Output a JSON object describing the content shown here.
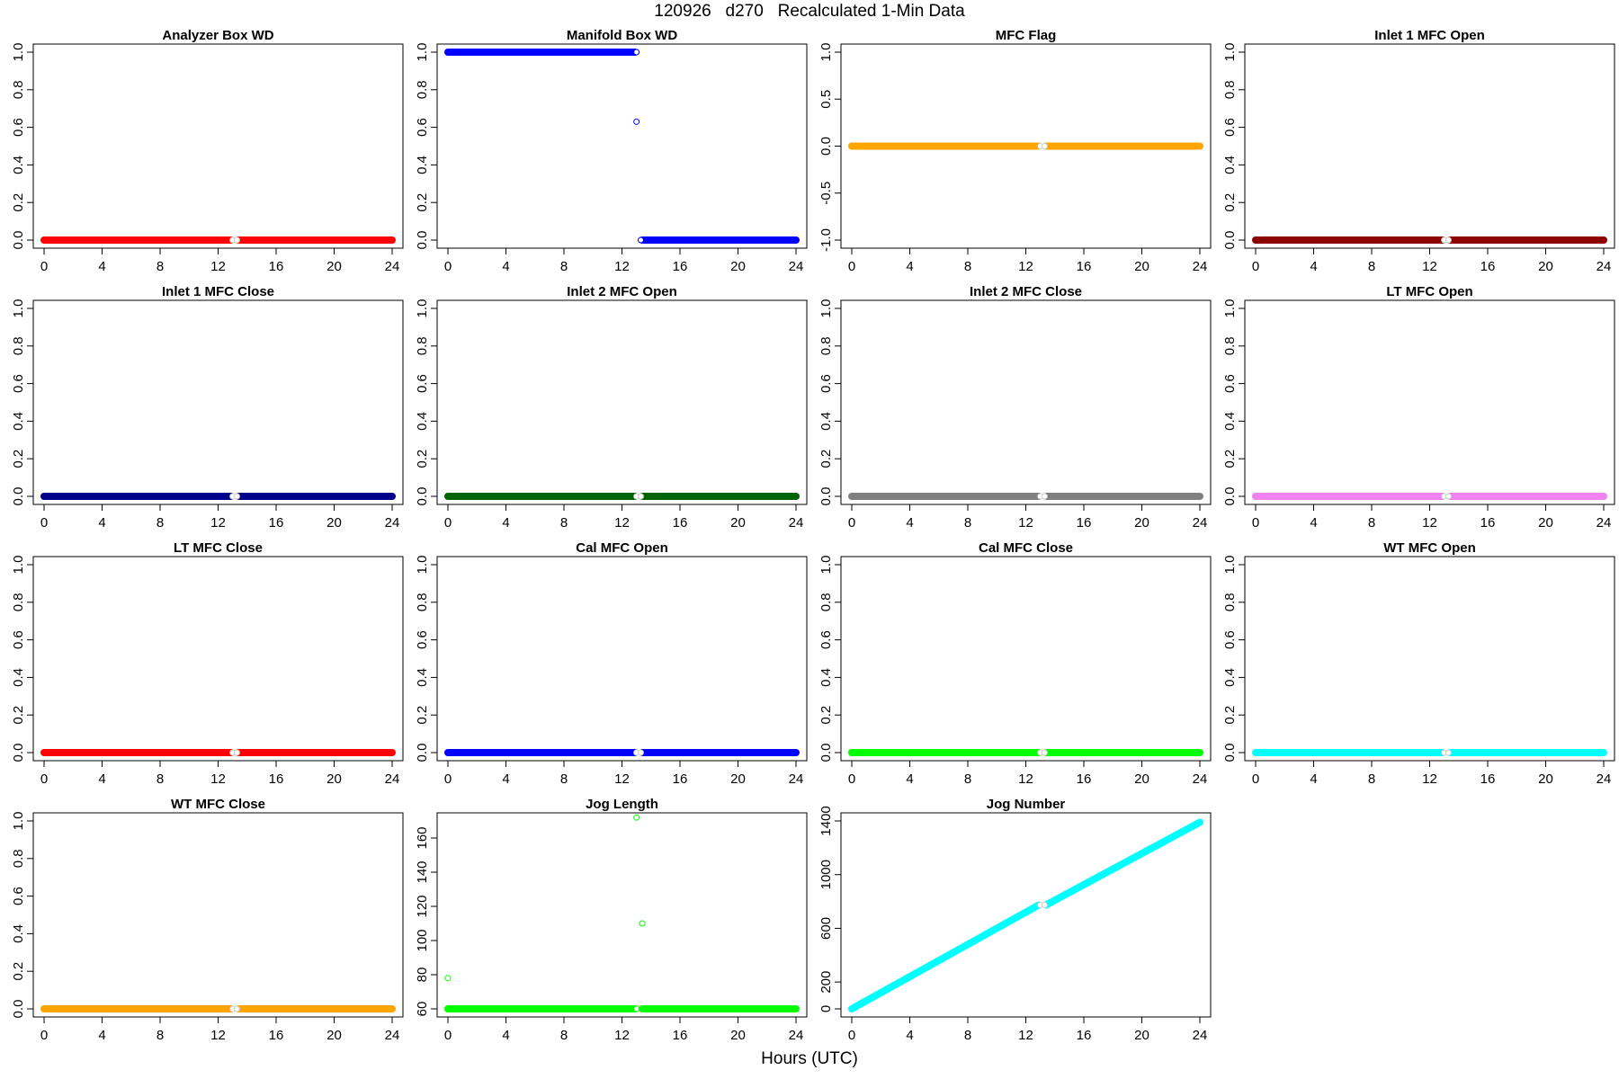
{
  "page": {
    "title": "120926   d270   Recalculated 1-Min Data",
    "xlabel": "Hours (UTC)"
  },
  "chart_data": [
    {
      "type": "scatter",
      "title": "Analyzer Box WD",
      "color": "#FF0000",
      "xlim": [
        0,
        24
      ],
      "ylim": [
        0,
        1
      ],
      "xticks": [
        0,
        4,
        8,
        12,
        16,
        20,
        24
      ],
      "yticks": [
        0.0,
        0.2,
        0.4,
        0.6,
        0.8,
        1.0
      ],
      "ytick_labels": [
        "0.0",
        "0.2",
        "0.4",
        "0.6",
        "0.8",
        "1.0"
      ],
      "series": [
        {
          "segments": [
            {
              "x_from": 0,
              "x_to": 12.9,
              "y": 0
            },
            {
              "x_from": 13.4,
              "x_to": 24,
              "y": 0
            }
          ]
        }
      ],
      "gap_points": [
        {
          "x": 13.0,
          "y": 0
        },
        {
          "x": 13.3,
          "y": 0
        }
      ]
    },
    {
      "type": "scatter",
      "title": "Manifold Box WD",
      "color": "#0000FF",
      "xlim": [
        0,
        24
      ],
      "ylim": [
        0,
        1
      ],
      "xticks": [
        0,
        4,
        8,
        12,
        16,
        20,
        24
      ],
      "yticks": [
        0.0,
        0.2,
        0.4,
        0.6,
        0.8,
        1.0
      ],
      "ytick_labels": [
        "0.0",
        "0.2",
        "0.4",
        "0.6",
        "0.8",
        "1.0"
      ],
      "series": [
        {
          "segments": [
            {
              "x_from": 0,
              "x_to": 12.9,
              "y": 1
            },
            {
              "x_from": 13.4,
              "x_to": 24,
              "y": 0
            }
          ]
        }
      ],
      "points": [
        {
          "x": 13.0,
          "y": 1
        },
        {
          "x": 13.0,
          "y": 0.63
        },
        {
          "x": 13.3,
          "y": 0
        }
      ]
    },
    {
      "type": "scatter",
      "title": "MFC Flag",
      "color": "#FFA500",
      "xlim": [
        0,
        24
      ],
      "ylim": [
        -1,
        1
      ],
      "xticks": [
        0,
        4,
        8,
        12,
        16,
        20,
        24
      ],
      "yticks": [
        -1.0,
        -0.5,
        0.0,
        0.5,
        1.0
      ],
      "ytick_labels": [
        "-1.0",
        "-0.5",
        "0.0",
        "0.5",
        "1.0"
      ],
      "series": [
        {
          "segments": [
            {
              "x_from": 0,
              "x_to": 12.9,
              "y": 0
            },
            {
              "x_from": 13.4,
              "x_to": 24,
              "y": 0
            }
          ]
        }
      ],
      "gap_points": [
        {
          "x": 13.0,
          "y": 0
        },
        {
          "x": 13.3,
          "y": 0
        }
      ]
    },
    {
      "type": "scatter",
      "title": "Inlet 1 MFC Open",
      "color": "#8B0000",
      "xlim": [
        0,
        24
      ],
      "ylim": [
        0,
        1
      ],
      "xticks": [
        0,
        4,
        8,
        12,
        16,
        20,
        24
      ],
      "yticks": [
        0.0,
        0.2,
        0.4,
        0.6,
        0.8,
        1.0
      ],
      "ytick_labels": [
        "0.0",
        "0.2",
        "0.4",
        "0.6",
        "0.8",
        "1.0"
      ],
      "series": [
        {
          "segments": [
            {
              "x_from": 0,
              "x_to": 12.9,
              "y": 0
            },
            {
              "x_from": 13.4,
              "x_to": 24,
              "y": 0
            }
          ]
        }
      ],
      "gap_points": [
        {
          "x": 13.0,
          "y": 0
        },
        {
          "x": 13.3,
          "y": 0
        }
      ]
    },
    {
      "type": "scatter",
      "title": "Inlet 1 MFC Close",
      "color": "#00008B",
      "xlim": [
        0,
        24
      ],
      "ylim": [
        0,
        1
      ],
      "xticks": [
        0,
        4,
        8,
        12,
        16,
        20,
        24
      ],
      "yticks": [
        0.0,
        0.2,
        0.4,
        0.6,
        0.8,
        1.0
      ],
      "ytick_labels": [
        "0.0",
        "0.2",
        "0.4",
        "0.6",
        "0.8",
        "1.0"
      ],
      "series": [
        {
          "segments": [
            {
              "x_from": 0,
              "x_to": 12.9,
              "y": 0
            },
            {
              "x_from": 13.4,
              "x_to": 24,
              "y": 0
            }
          ]
        }
      ],
      "gap_points": [
        {
          "x": 13.0,
          "y": 0
        },
        {
          "x": 13.3,
          "y": 0
        }
      ]
    },
    {
      "type": "scatter",
      "title": "Inlet 2 MFC Open",
      "color": "#006400",
      "xlim": [
        0,
        24
      ],
      "ylim": [
        0,
        1
      ],
      "xticks": [
        0,
        4,
        8,
        12,
        16,
        20,
        24
      ],
      "yticks": [
        0.0,
        0.2,
        0.4,
        0.6,
        0.8,
        1.0
      ],
      "ytick_labels": [
        "0.0",
        "0.2",
        "0.4",
        "0.6",
        "0.8",
        "1.0"
      ],
      "series": [
        {
          "segments": [
            {
              "x_from": 0,
              "x_to": 12.9,
              "y": 0
            },
            {
              "x_from": 13.4,
              "x_to": 24,
              "y": 0
            }
          ]
        }
      ],
      "gap_points": [
        {
          "x": 13.0,
          "y": 0
        },
        {
          "x": 13.3,
          "y": 0
        }
      ]
    },
    {
      "type": "scatter",
      "title": "Inlet 2 MFC Close",
      "color": "#808080",
      "xlim": [
        0,
        24
      ],
      "ylim": [
        0,
        1
      ],
      "xticks": [
        0,
        4,
        8,
        12,
        16,
        20,
        24
      ],
      "yticks": [
        0.0,
        0.2,
        0.4,
        0.6,
        0.8,
        1.0
      ],
      "ytick_labels": [
        "0.0",
        "0.2",
        "0.4",
        "0.6",
        "0.8",
        "1.0"
      ],
      "series": [
        {
          "segments": [
            {
              "x_from": 0,
              "x_to": 12.9,
              "y": 0
            },
            {
              "x_from": 13.4,
              "x_to": 24,
              "y": 0
            }
          ]
        }
      ],
      "gap_points": [
        {
          "x": 13.0,
          "y": 0
        },
        {
          "x": 13.3,
          "y": 0
        }
      ]
    },
    {
      "type": "scatter",
      "title": "LT MFC Open",
      "color": "#EE82EE",
      "xlim": [
        0,
        24
      ],
      "ylim": [
        0,
        1
      ],
      "xticks": [
        0,
        4,
        8,
        12,
        16,
        20,
        24
      ],
      "yticks": [
        0.0,
        0.2,
        0.4,
        0.6,
        0.8,
        1.0
      ],
      "ytick_labels": [
        "0.0",
        "0.2",
        "0.4",
        "0.6",
        "0.8",
        "1.0"
      ],
      "series": [
        {
          "segments": [
            {
              "x_from": 0,
              "x_to": 12.9,
              "y": 0
            },
            {
              "x_from": 13.4,
              "x_to": 24,
              "y": 0
            }
          ]
        }
      ],
      "gap_points": [
        {
          "x": 13.0,
          "y": 0
        },
        {
          "x": 13.3,
          "y": 0
        }
      ]
    },
    {
      "type": "scatter",
      "title": "LT MFC Close",
      "color": "#FF0000",
      "xlim": [
        0,
        24
      ],
      "ylim": [
        0,
        1
      ],
      "xticks": [
        0,
        4,
        8,
        12,
        16,
        20,
        24
      ],
      "yticks": [
        0.0,
        0.2,
        0.4,
        0.6,
        0.8,
        1.0
      ],
      "ytick_labels": [
        "0.0",
        "0.2",
        "0.4",
        "0.6",
        "0.8",
        "1.0"
      ],
      "series": [
        {
          "segments": [
            {
              "x_from": 0,
              "x_to": 12.9,
              "y": 0
            },
            {
              "x_from": 13.4,
              "x_to": 24,
              "y": 0
            }
          ]
        }
      ],
      "gap_points": [
        {
          "x": 13.0,
          "y": 0
        },
        {
          "x": 13.3,
          "y": 0
        }
      ]
    },
    {
      "type": "scatter",
      "title": "Cal MFC Open",
      "color": "#0000FF",
      "xlim": [
        0,
        24
      ],
      "ylim": [
        0,
        1
      ],
      "xticks": [
        0,
        4,
        8,
        12,
        16,
        20,
        24
      ],
      "yticks": [
        0.0,
        0.2,
        0.4,
        0.6,
        0.8,
        1.0
      ],
      "ytick_labels": [
        "0.0",
        "0.2",
        "0.4",
        "0.6",
        "0.8",
        "1.0"
      ],
      "series": [
        {
          "segments": [
            {
              "x_from": 0,
              "x_to": 12.9,
              "y": 0
            },
            {
              "x_from": 13.4,
              "x_to": 24,
              "y": 0
            }
          ]
        }
      ],
      "gap_points": [
        {
          "x": 13.0,
          "y": 0
        },
        {
          "x": 13.3,
          "y": 0
        }
      ]
    },
    {
      "type": "scatter",
      "title": "Cal MFC Close",
      "color": "#00FF00",
      "xlim": [
        0,
        24
      ],
      "ylim": [
        0,
        1
      ],
      "xticks": [
        0,
        4,
        8,
        12,
        16,
        20,
        24
      ],
      "yticks": [
        0.0,
        0.2,
        0.4,
        0.6,
        0.8,
        1.0
      ],
      "ytick_labels": [
        "0.0",
        "0.2",
        "0.4",
        "0.6",
        "0.8",
        "1.0"
      ],
      "series": [
        {
          "segments": [
            {
              "x_from": 0,
              "x_to": 12.9,
              "y": 0
            },
            {
              "x_from": 13.4,
              "x_to": 24,
              "y": 0
            }
          ]
        }
      ],
      "gap_points": [
        {
          "x": 13.0,
          "y": 0
        },
        {
          "x": 13.3,
          "y": 0
        }
      ]
    },
    {
      "type": "scatter",
      "title": "WT MFC Open",
      "color": "#00FFFF",
      "xlim": [
        0,
        24
      ],
      "ylim": [
        0,
        1
      ],
      "xticks": [
        0,
        4,
        8,
        12,
        16,
        20,
        24
      ],
      "yticks": [
        0.0,
        0.2,
        0.4,
        0.6,
        0.8,
        1.0
      ],
      "ytick_labels": [
        "0.0",
        "0.2",
        "0.4",
        "0.6",
        "0.8",
        "1.0"
      ],
      "series": [
        {
          "segments": [
            {
              "x_from": 0,
              "x_to": 12.9,
              "y": 0
            },
            {
              "x_from": 13.4,
              "x_to": 24,
              "y": 0
            }
          ]
        }
      ],
      "gap_points": [
        {
          "x": 13.0,
          "y": 0
        },
        {
          "x": 13.3,
          "y": 0
        }
      ]
    },
    {
      "type": "scatter",
      "title": "WT MFC Close",
      "color": "#FFA500",
      "xlim": [
        0,
        24
      ],
      "ylim": [
        0,
        1
      ],
      "xticks": [
        0,
        4,
        8,
        12,
        16,
        20,
        24
      ],
      "yticks": [
        0.0,
        0.2,
        0.4,
        0.6,
        0.8,
        1.0
      ],
      "ytick_labels": [
        "0.0",
        "0.2",
        "0.4",
        "0.6",
        "0.8",
        "1.0"
      ],
      "series": [
        {
          "segments": [
            {
              "x_from": 0,
              "x_to": 12.9,
              "y": 0
            },
            {
              "x_from": 13.4,
              "x_to": 24,
              "y": 0
            }
          ]
        }
      ],
      "gap_points": [
        {
          "x": 13.0,
          "y": 0
        },
        {
          "x": 13.3,
          "y": 0
        }
      ]
    },
    {
      "type": "scatter",
      "title": "Jog Length",
      "color": "#00FF00",
      "xlim": [
        0,
        24
      ],
      "ylim": [
        60,
        170
      ],
      "xticks": [
        0,
        4,
        8,
        12,
        16,
        20,
        24
      ],
      "yticks": [
        60,
        80,
        100,
        120,
        140,
        160
      ],
      "ytick_labels": [
        "60",
        "80",
        "100",
        "120",
        "140",
        "160"
      ],
      "series": [
        {
          "segments": [
            {
              "x_from": 0,
              "x_to": 12.9,
              "y": 60
            },
            {
              "x_from": 13.4,
              "x_to": 24,
              "y": 60
            }
          ]
        }
      ],
      "points": [
        {
          "x": 0.0,
          "y": 78
        },
        {
          "x": 13.0,
          "y": 60
        },
        {
          "x": 13.0,
          "y": 172
        },
        {
          "x": 13.4,
          "y": 110
        }
      ]
    },
    {
      "type": "scatter",
      "title": "Jog Number",
      "color": "#00FFFF",
      "xlim": [
        0,
        24
      ],
      "ylim": [
        0,
        1400
      ],
      "xticks": [
        0,
        4,
        8,
        12,
        16,
        20,
        24
      ],
      "yticks": [
        0,
        200,
        600,
        1000,
        1400
      ],
      "ytick_labels": [
        "0",
        "200",
        "600",
        "1000",
        "1400"
      ],
      "series": [
        {
          "segments": [
            {
              "x_from": 0,
              "x_to": 12.9,
              "y_from": 0,
              "y_to": 774
            },
            {
              "x_from": 13.4,
              "x_to": 24,
              "y_from": 774,
              "y_to": 1390
            }
          ]
        }
      ],
      "gap_points": [
        {
          "x": 13.0,
          "y": 774
        },
        {
          "x": 13.3,
          "y": 774
        }
      ]
    }
  ]
}
